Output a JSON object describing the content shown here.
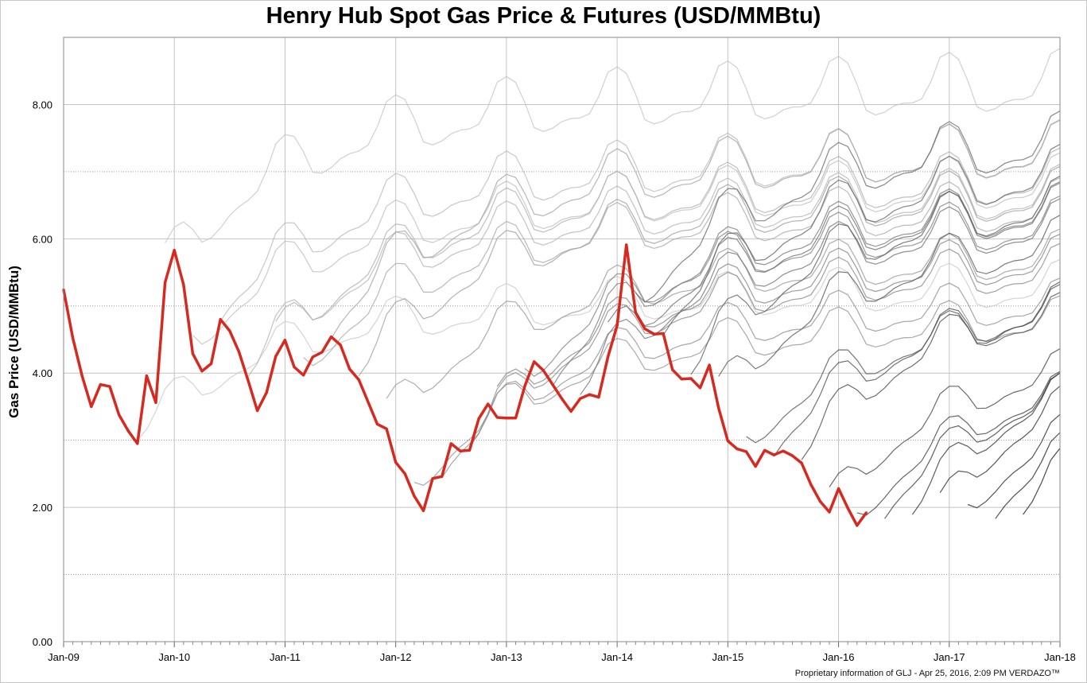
{
  "chart_data": {
    "type": "line",
    "title": "Henry Hub Spot Gas Price & Futures (USD/MMBtu)",
    "xlabel": "",
    "ylabel": "Gas Price (USD/MMBtu)",
    "ylim": [
      0,
      9
    ],
    "xlim": [
      "2009-01",
      "2018-01"
    ],
    "y_ticks": [
      "0.00",
      "2.00",
      "4.00",
      "6.00",
      "8.00"
    ],
    "y_minor_gridlines": [
      1,
      3,
      5,
      7
    ],
    "x_ticks": [
      "Jan-09",
      "Jan-10",
      "Jan-11",
      "Jan-12",
      "Jan-13",
      "Jan-14",
      "Jan-15",
      "Jan-16",
      "Jan-17",
      "Jan-18"
    ],
    "grid": true,
    "series": [
      {
        "name": "",
        "color": "#d62a20",
        "x": [
          "2009-01",
          "2009-02",
          "2009-03",
          "2009-04",
          "2009-05",
          "2009-06",
          "2009-07",
          "2009-08",
          "2009-09",
          "2009-10",
          "2009-11",
          "2009-12",
          "2010-01",
          "2010-02",
          "2010-03",
          "2010-04",
          "2010-05",
          "2010-06",
          "2010-07",
          "2010-08",
          "2010-09",
          "2010-10",
          "2010-11",
          "2010-12",
          "2011-01",
          "2011-02",
          "2011-03",
          "2011-04",
          "2011-05",
          "2011-06",
          "2011-07",
          "2011-08",
          "2011-09",
          "2011-10",
          "2011-11",
          "2011-12",
          "2012-01",
          "2012-02",
          "2012-03",
          "2012-04",
          "2012-05",
          "2012-06",
          "2012-07",
          "2012-08",
          "2012-09",
          "2012-10",
          "2012-11",
          "2012-12",
          "2013-01",
          "2013-02",
          "2013-03",
          "2013-04",
          "2013-05",
          "2013-06",
          "2013-07",
          "2013-08",
          "2013-09",
          "2013-10",
          "2013-11",
          "2013-12",
          "2014-01",
          "2014-02",
          "2014-03",
          "2014-04",
          "2014-05",
          "2014-06",
          "2014-07",
          "2014-08",
          "2014-09",
          "2014-10",
          "2014-11",
          "2014-12",
          "2015-01",
          "2015-02",
          "2015-03",
          "2015-04",
          "2015-05",
          "2015-06",
          "2015-07",
          "2015-08",
          "2015-09",
          "2015-10",
          "2015-11",
          "2015-12",
          "2016-01",
          "2016-02",
          "2016-03",
          "2016-04"
        ],
        "values": [
          5.24,
          4.52,
          3.96,
          3.5,
          3.83,
          3.8,
          3.38,
          3.14,
          2.95,
          3.96,
          3.56,
          5.35,
          5.83,
          5.32,
          4.29,
          4.03,
          4.14,
          4.8,
          4.63,
          4.32,
          3.89,
          3.44,
          3.71,
          4.25,
          4.49,
          4.09,
          3.97,
          4.24,
          4.31,
          4.54,
          4.42,
          4.06,
          3.9,
          3.57,
          3.24,
          3.17,
          2.67,
          2.5,
          2.17,
          1.95,
          2.43,
          2.46,
          2.95,
          2.84,
          2.85,
          3.32,
          3.54,
          3.34,
          3.33,
          3.33,
          3.81,
          4.17,
          4.04,
          3.83,
          3.62,
          3.43,
          3.62,
          3.68,
          3.64,
          4.24,
          4.71,
          5.91,
          4.9,
          4.66,
          4.58,
          4.59,
          4.05,
          3.91,
          3.92,
          3.78,
          4.12,
          3.48,
          2.99,
          2.87,
          2.83,
          2.61,
          2.85,
          2.78,
          2.84,
          2.77,
          2.66,
          2.34,
          2.09,
          1.93,
          2.28,
          1.99,
          1.73,
          1.92
        ]
      }
    ]
  },
  "footer": "Proprietary information of GLJ - Apr 25, 2016, 2:09 PM  VERDAZO™"
}
